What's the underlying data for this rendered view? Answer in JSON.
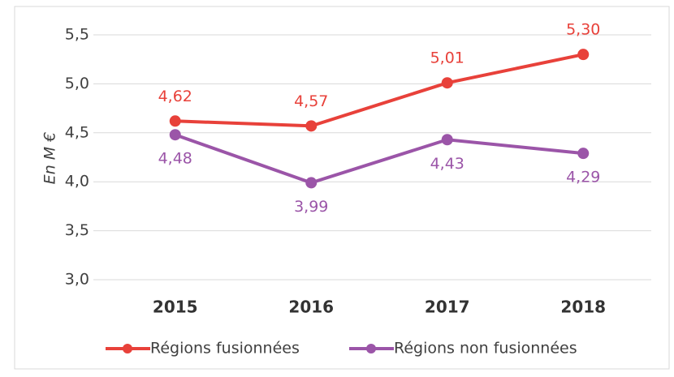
{
  "chart_data": {
    "type": "line",
    "y_label": "En M €",
    "categories": [
      "2015",
      "2016",
      "2017",
      "2018"
    ],
    "series": [
      {
        "name": "Régions fusionnées",
        "color": "#e8413a",
        "values": [
          4.62,
          4.57,
          5.01,
          5.3
        ],
        "value_labels": [
          "4,62",
          "4,57",
          "5,01",
          "5,30"
        ]
      },
      {
        "name": "Régions non fusionnées",
        "color": "#9b55a8",
        "values": [
          4.48,
          3.99,
          4.43,
          4.29
        ],
        "value_labels": [
          "4,48",
          "3,99",
          "4,43",
          "4,29"
        ]
      }
    ],
    "ylim": [
      3.0,
      5.5
    ],
    "yticks": [
      {
        "value": 3.0,
        "label": "3,0"
      },
      {
        "value": 3.5,
        "label": "3,5"
      },
      {
        "value": 4.0,
        "label": "4,0"
      },
      {
        "value": 4.5,
        "label": "4,5"
      },
      {
        "value": 5.0,
        "label": "5,0"
      },
      {
        "value": 5.5,
        "label": "5,5"
      }
    ],
    "grid": true,
    "legend": "bottom"
  }
}
